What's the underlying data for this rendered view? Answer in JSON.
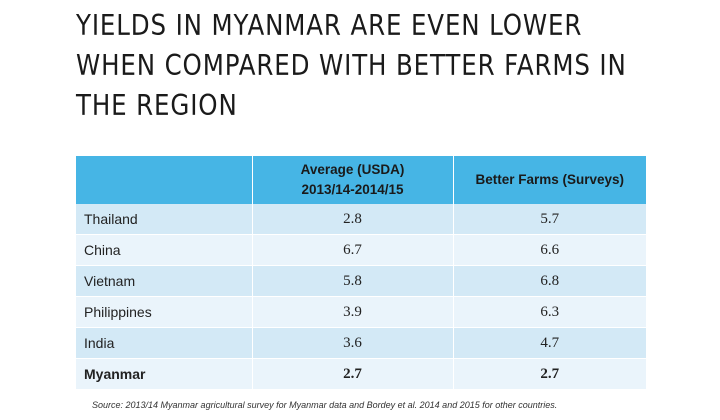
{
  "title": {
    "lines": [
      "YIELDS IN MYANMAR ARE EVEN LOWER",
      "WHEN COMPARED WITH BETTER FARMS IN",
      "THE REGION"
    ]
  },
  "table": {
    "headers": {
      "country": "",
      "average_line1": "Average (USDA)",
      "average_line2": "2013/14-2014/15",
      "better": "Better Farms (Surveys)"
    },
    "rows": [
      {
        "country": "Thailand",
        "average": "2.8",
        "better": "5.7"
      },
      {
        "country": "China",
        "average": "6.7",
        "better": "6.6"
      },
      {
        "country": "Vietnam",
        "average": "5.8",
        "better": "6.8"
      },
      {
        "country": "Philippines",
        "average": "3.9",
        "better": "6.3"
      },
      {
        "country": "India",
        "average": "3.6",
        "better": "4.7"
      },
      {
        "country": "Myanmar",
        "average": "2.7",
        "better": "2.7"
      }
    ],
    "header_color": "#46b5e5",
    "row_color_a": "#d3e9f6",
    "row_color_b": "#eaf4fb"
  },
  "source": "Source: 2013/14 Myanmar agricultural survey for Myanmar data and Bordey et al. 2014 and 2015 for other countries."
}
